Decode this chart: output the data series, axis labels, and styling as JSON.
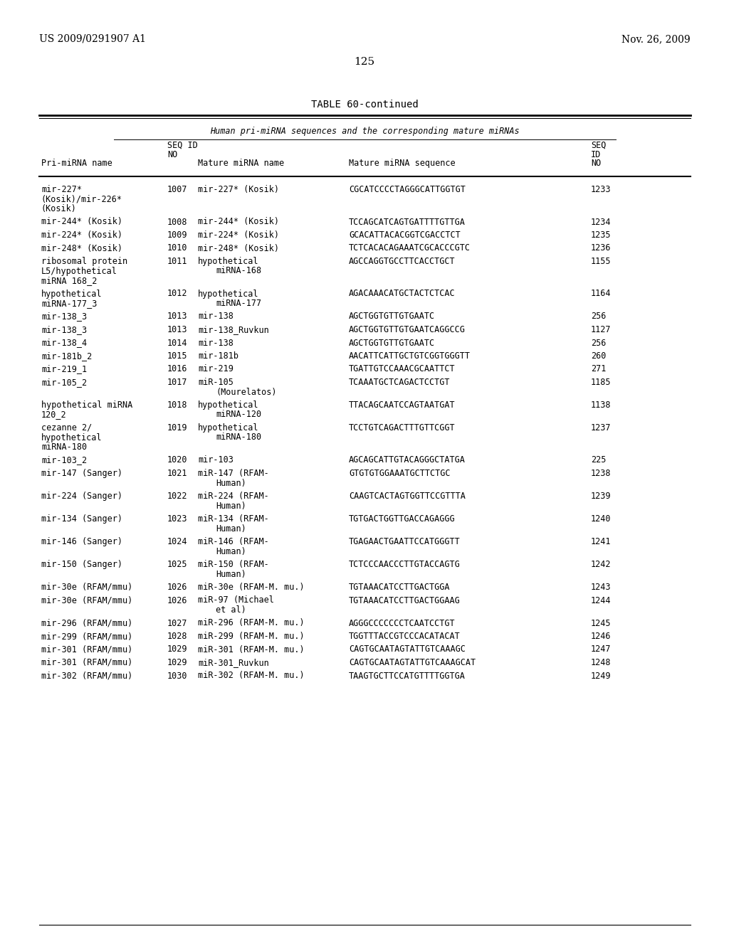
{
  "header_left": "US 2009/0291907 A1",
  "header_right": "Nov. 26, 2009",
  "page_number": "125",
  "table_title": "TABLE 60-continued",
  "table_subtitle": "Human pri-miRNA sequences and the corresponding mature miRNAs",
  "rows": [
    [
      "mir-227*\n(Kosik)/mir-226*\n(Kosik)",
      "1007",
      "mir-227* (Kosik)",
      "CGCATCCCCTAGGGCATTGGTGT",
      "1233"
    ],
    [
      "mir-244* (Kosik)",
      "1008",
      "mir-244* (Kosik)",
      "TCCAGCATCAGTGATTTTGTTGA",
      "1234"
    ],
    [
      "mir-224* (Kosik)",
      "1009",
      "mir-224* (Kosik)",
      "GCACATTACACGGTCGACCTCT",
      "1235"
    ],
    [
      "mir-248* (Kosik)",
      "1010",
      "mir-248* (Kosik)",
      "TCTCACACAGAAATCGCACCCGTC",
      "1236"
    ],
    [
      "ribosomal protein\nL5/hypothetical\nmiRNA 168_2",
      "1011",
      "hypothetical\nmiRNA-168",
      "AGCCAGGTGCCTTCACCTGCT",
      "1155"
    ],
    [
      "hypothetical\nmiRNA-177_3",
      "1012",
      "hypothetical\nmiRNA-177",
      "AGACAAACATGCTACTCTCAC",
      "1164"
    ],
    [
      "mir-138_3",
      "1013",
      "mir-138",
      "AGCTGGTGTTGTGAATC",
      "256"
    ],
    [
      "mir-138_3",
      "1013",
      "mir-138_Ruvkun",
      "AGCTGGTGTTGTGAATCAGGCCG",
      "1127"
    ],
    [
      "mir-138_4",
      "1014",
      "mir-138",
      "AGCTGGTGTTGTGAATC",
      "256"
    ],
    [
      "mir-181b_2",
      "1015",
      "mir-181b",
      "AACATTCATTGCTGTCGGTGGGTT",
      "260"
    ],
    [
      "mir-219_1",
      "1016",
      "mir-219",
      "TGATTGTCCAAACGCAATTCT",
      "271"
    ],
    [
      "mir-105_2",
      "1017",
      "miR-105\n(Mourelatos)",
      "TCAAATGCTCAGACTCCTGT",
      "1185"
    ],
    [
      "hypothetical miRNA\n120_2",
      "1018",
      "hypothetical\nmiRNA-120",
      "TTACAGCAATCCAGTAATGAT",
      "1138"
    ],
    [
      "cezanne 2/\nhypothetical\nmiRNA-180",
      "1019",
      "hypothetical\nmiRNA-180",
      "TCCTGTCAGACTTTGTTCGGT",
      "1237"
    ],
    [
      "mir-103_2",
      "1020",
      "mir-103",
      "AGCAGCATTGTACAGGGCTATGA",
      "225"
    ],
    [
      "mir-147 (Sanger)",
      "1021",
      "miR-147 (RFAM-\nHuman)",
      "GTGTGTGGAAATGCTTCTGC",
      "1238"
    ],
    [
      "mir-224 (Sanger)",
      "1022",
      "miR-224 (RFAM-\nHuman)",
      "CAAGTCACTAGTGGTTCCGTTTA",
      "1239"
    ],
    [
      "mir-134 (Sanger)",
      "1023",
      "miR-134 (RFAM-\nHuman)",
      "TGTGACTGGTTGACCAGAGGG",
      "1240"
    ],
    [
      "mir-146 (Sanger)",
      "1024",
      "miR-146 (RFAM-\nHuman)",
      "TGAGAACTGAATTCCATGGGTT",
      "1241"
    ],
    [
      "mir-150 (Sanger)",
      "1025",
      "miR-150 (RFAM-\nHuman)",
      "TCTCCCAACCCTTGTACCAGTG",
      "1242"
    ],
    [
      "mir-30e (RFAM/mmu)",
      "1026",
      "miR-30e (RFAM-M. mu.)",
      "TGTAAACATCCTTGACTGGA",
      "1243"
    ],
    [
      "mir-30e (RFAM/mmu)",
      "1026",
      "miR-97 (Michael\net al)",
      "TGTAAACATCCTTGACTGGAAG",
      "1244"
    ],
    [
      "mir-296 (RFAM/mmu)",
      "1027",
      "miR-296 (RFAM-M. mu.)",
      "AGGGCCCCCCCTCAATCCTGT",
      "1245"
    ],
    [
      "mir-299 (RFAM/mmu)",
      "1028",
      "miR-299 (RFAM-M. mu.)",
      "TGGTTTACCGTCCCACATACAT",
      "1246"
    ],
    [
      "mir-301 (RFAM/mmu)",
      "1029",
      "miR-301 (RFAM-M. mu.)",
      "CAGTGCAATAGTATTGTCAAAGC",
      "1247"
    ],
    [
      "mir-301 (RFAM/mmu)",
      "1029",
      "miR-301_Ruvkun",
      "CAGTGCAATAGTATTGTCAAAGCAT",
      "1248"
    ],
    [
      "mir-302 (RFAM/mmu)",
      "1030",
      "miR-302 (RFAM-M. mu.)",
      "TAAGTGCTTCCATGTTTTGGTGA",
      "1249"
    ]
  ],
  "bg_color": "#ffffff",
  "text_color": "#000000"
}
